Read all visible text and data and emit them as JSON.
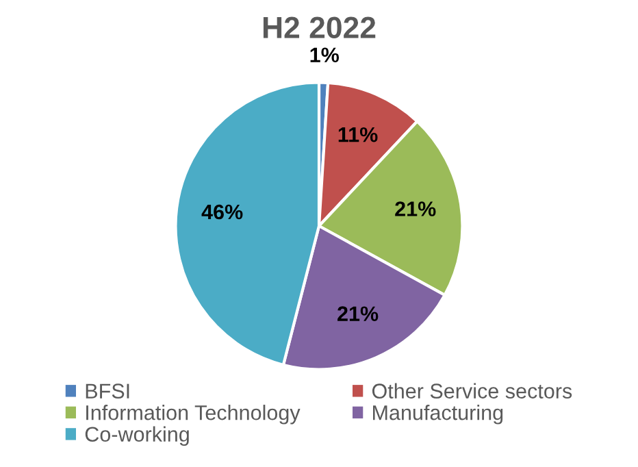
{
  "chart_data": {
    "type": "pie",
    "title": "H2 2022",
    "categories": [
      "BFSI",
      "Other Service sectors",
      "Information Technology",
      "Manufacturing",
      "Co-working"
    ],
    "values": [
      1,
      11,
      21,
      21,
      46
    ],
    "colors": [
      "#4f81bd",
      "#c0504d",
      "#9bbb59",
      "#8064a2",
      "#4bacc6"
    ],
    "value_labels": [
      "1%",
      "11%",
      "21%",
      "21%",
      "46%"
    ],
    "legend": "bottom"
  }
}
